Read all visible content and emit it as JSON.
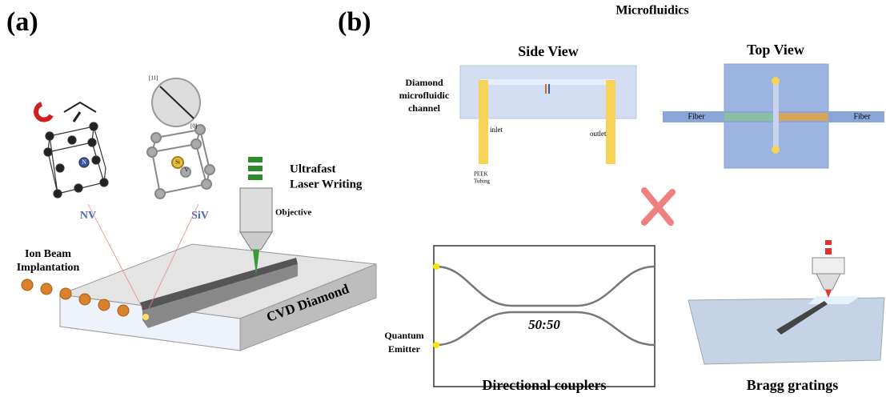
{
  "panel_a": {
    "label": "(a)",
    "laser_writing": [
      "Ultrafast",
      "Laser Writing"
    ],
    "objective": "Objective",
    "nv": "NV",
    "siv": "SiV",
    "nv_atom": "N",
    "siv_atoms": [
      "Si",
      "V"
    ],
    "axis_labels": [
      "[11]",
      "[0]"
    ],
    "ion_beam": [
      "Ion Beam",
      "Implantation"
    ],
    "substrate": "CVD Diamond"
  },
  "panel_b": {
    "label": "(b)",
    "title": "Microfluidics",
    "side_view": {
      "title": "Side View",
      "channel_label": [
        "Diamond",
        "microfluidic",
        "channel"
      ],
      "inlet": "inlet",
      "outlet": "outlet",
      "tubing": [
        "PEEK",
        "Tubing"
      ]
    },
    "top_view": {
      "title": "Top View",
      "fiber_left": "Fiber",
      "fiber_right": "Fiber"
    },
    "coupler": {
      "ratio": "50:50",
      "emitter": [
        "Quantum",
        "Emitter"
      ],
      "caption": "Directional couplers"
    },
    "bragg": {
      "caption": "Bragg gratings"
    }
  }
}
